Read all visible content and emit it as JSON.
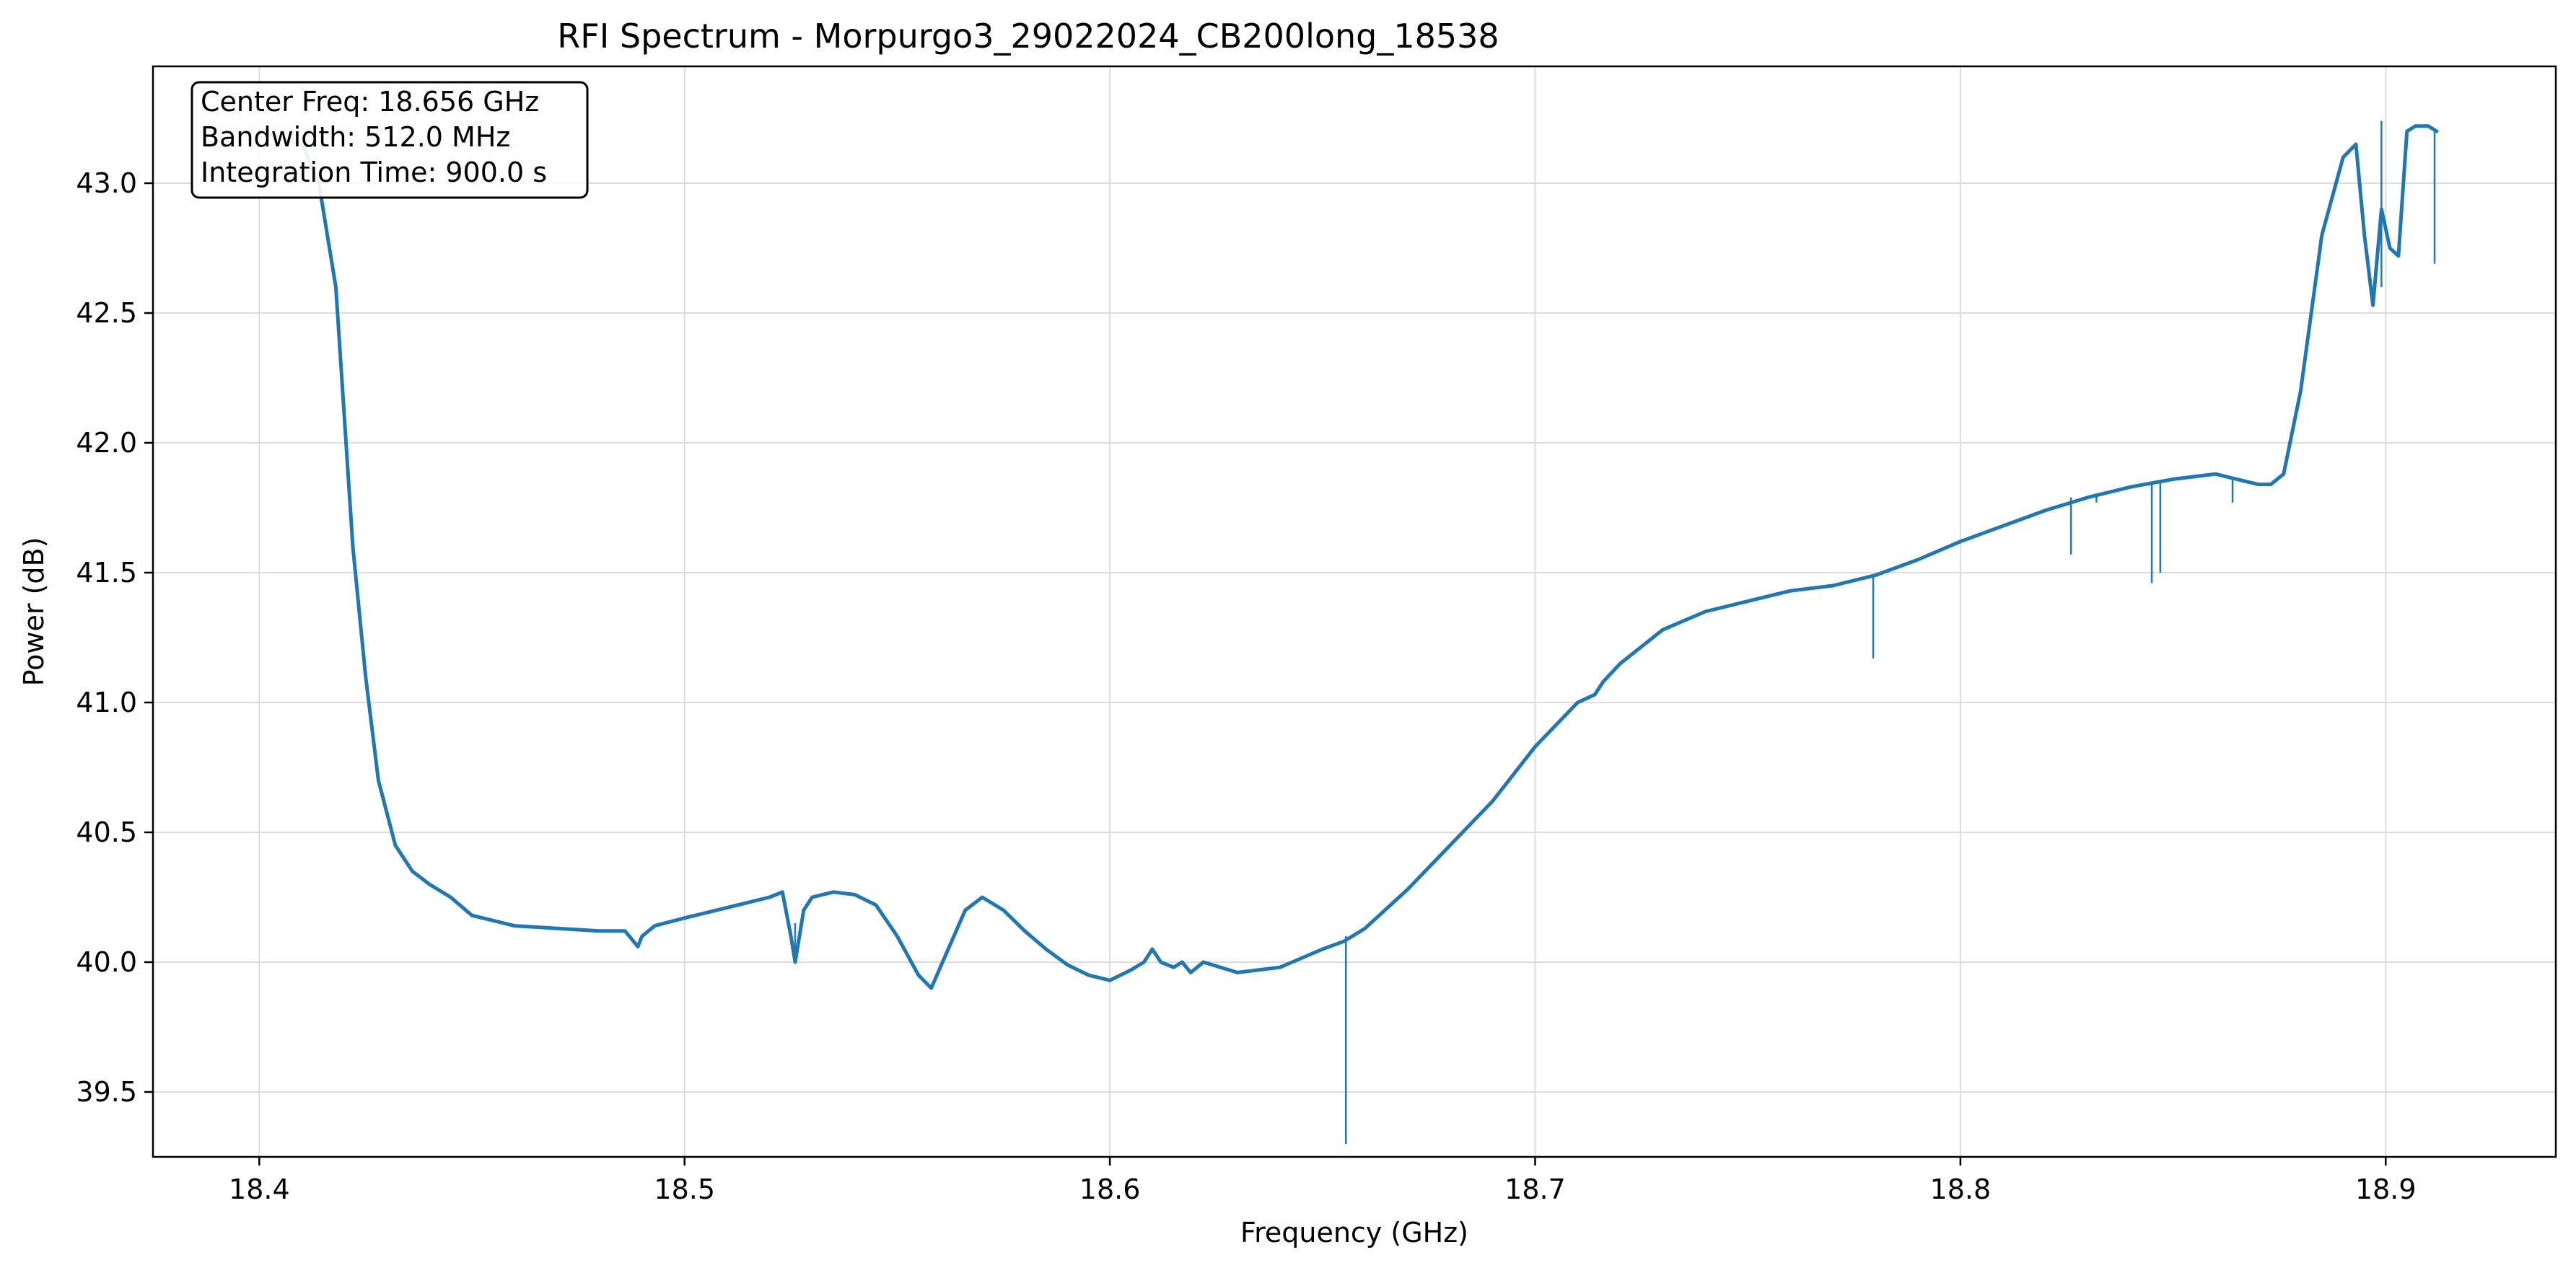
{
  "chart_data": {
    "type": "line",
    "title": "RFI Spectrum - Morpurgo3_29022024_CB200long_18538",
    "xlabel": "Frequency (GHz)",
    "ylabel": "Power (dB)",
    "xlim": [
      18.375,
      18.94
    ],
    "ylim": [
      39.25,
      43.45
    ],
    "xticks": [
      18.4,
      18.5,
      18.6,
      18.7,
      18.8,
      18.9
    ],
    "xtick_labels": [
      "18.4",
      "18.5",
      "18.6",
      "18.7",
      "18.8",
      "18.9"
    ],
    "yticks": [
      39.5,
      40.0,
      40.5,
      41.0,
      41.5,
      42.0,
      42.5,
      43.0
    ],
    "ytick_labels": [
      "39.5",
      "40.0",
      "40.5",
      "41.0",
      "41.5",
      "42.0",
      "42.5",
      "43.0"
    ],
    "grid": true,
    "line_color": "#1f77b4",
    "annotation_lines": [
      "Center Freq: 18.656 GHz",
      "Bandwidth: 512.0 MHz",
      "Integration Time: 900.0 s"
    ],
    "series": [
      {
        "name": "Power",
        "x": [
          18.4,
          18.41,
          18.414,
          18.418,
          18.42,
          18.422,
          18.425,
          18.428,
          18.432,
          18.436,
          18.44,
          18.445,
          18.45,
          18.46,
          18.47,
          18.48,
          18.486,
          18.488,
          18.489,
          18.49,
          18.493,
          18.5,
          18.51,
          18.52,
          18.523,
          18.525,
          18.526,
          18.528,
          18.53,
          18.535,
          18.54,
          18.545,
          18.55,
          18.555,
          18.558,
          18.562,
          18.566,
          18.57,
          18.575,
          18.58,
          18.585,
          18.59,
          18.595,
          18.6,
          18.605,
          18.608,
          18.61,
          18.612,
          18.615,
          18.617,
          18.619,
          18.622,
          18.63,
          18.64,
          18.65,
          18.655,
          18.66,
          18.67,
          18.68,
          18.69,
          18.7,
          18.71,
          18.714,
          18.716,
          18.72,
          18.73,
          18.74,
          18.75,
          18.76,
          18.77,
          18.78,
          18.79,
          18.8,
          18.81,
          18.82,
          18.83,
          18.84,
          18.85,
          18.86,
          18.865,
          18.87,
          18.873,
          18.876,
          18.88,
          18.885,
          18.89,
          18.893,
          18.895,
          18.897,
          18.899,
          18.901,
          18.903,
          18.905,
          18.907,
          18.91,
          18.912
        ],
        "y": [
          43.2,
          43.15,
          43.0,
          42.6,
          42.1,
          41.6,
          41.1,
          40.7,
          40.45,
          40.35,
          40.3,
          40.25,
          40.18,
          40.14,
          40.13,
          40.12,
          40.12,
          40.08,
          40.06,
          40.1,
          40.14,
          40.17,
          40.21,
          40.25,
          40.27,
          40.1,
          40.0,
          40.2,
          40.25,
          40.27,
          40.26,
          40.22,
          40.1,
          39.95,
          39.9,
          40.05,
          40.2,
          40.25,
          40.2,
          40.12,
          40.05,
          39.99,
          39.95,
          39.93,
          39.97,
          40.0,
          40.05,
          40.0,
          39.98,
          40.0,
          39.96,
          40.0,
          39.96,
          39.98,
          40.05,
          40.08,
          40.13,
          40.28,
          40.45,
          40.62,
          40.83,
          41.0,
          41.03,
          41.08,
          41.15,
          41.28,
          41.35,
          41.39,
          41.43,
          41.45,
          41.49,
          41.55,
          41.62,
          41.68,
          41.74,
          41.79,
          41.83,
          41.86,
          41.88,
          41.86,
          41.84,
          41.84,
          41.88,
          42.2,
          42.8,
          43.1,
          43.15,
          42.8,
          42.53,
          42.9,
          42.75,
          42.72,
          43.2,
          43.22,
          43.22,
          43.2
        ]
      }
    ],
    "spikes": [
      {
        "x": 18.526,
        "y_top": 40.15,
        "y_bottom": 40.0
      },
      {
        "x": 18.6555,
        "y_top": 40.1,
        "y_bottom": 39.3
      },
      {
        "x": 18.7795,
        "y_top": 41.49,
        "y_bottom": 41.17
      },
      {
        "x": 18.826,
        "y_top": 41.79,
        "y_bottom": 41.57
      },
      {
        "x": 18.832,
        "y_top": 41.8,
        "y_bottom": 41.77
      },
      {
        "x": 18.845,
        "y_top": 41.84,
        "y_bottom": 41.46
      },
      {
        "x": 18.847,
        "y_top": 41.85,
        "y_bottom": 41.5
      },
      {
        "x": 18.864,
        "y_top": 41.86,
        "y_bottom": 41.77
      },
      {
        "x": 18.899,
        "y_top": 43.24,
        "y_bottom": 42.6
      },
      {
        "x": 18.9115,
        "y_top": 43.2,
        "y_bottom": 42.69
      }
    ]
  }
}
